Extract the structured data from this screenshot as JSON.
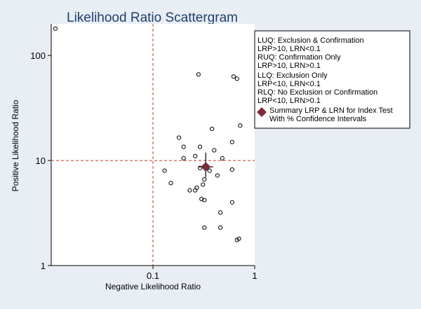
{
  "chart_data": {
    "type": "scatter",
    "title": "Likelihood Ratio Scattergram",
    "xlabel": "Negative Likelihood Ratio",
    "ylabel": "Positive Likelihood Ratio",
    "x_scale": "log",
    "y_scale": "log",
    "xlim": [
      0.01,
      1
    ],
    "ylim": [
      1,
      200
    ],
    "x_ticks": [
      {
        "value": 0.1,
        "label": "0.1"
      },
      {
        "value": 1,
        "label": "1"
      }
    ],
    "y_ticks": [
      {
        "value": 1,
        "label": "1"
      },
      {
        "value": 10,
        "label": "10"
      },
      {
        "value": 100,
        "label": "100"
      }
    ],
    "reference_lines": {
      "x": 0.1,
      "y": 10
    },
    "studies": [
      {
        "x": 0.011,
        "y": 180
      },
      {
        "x": 0.28,
        "y": 66
      },
      {
        "x": 0.62,
        "y": 63
      },
      {
        "x": 0.67,
        "y": 60
      },
      {
        "x": 0.72,
        "y": 21.5
      },
      {
        "x": 0.38,
        "y": 20
      },
      {
        "x": 0.18,
        "y": 16.5
      },
      {
        "x": 0.6,
        "y": 15
      },
      {
        "x": 0.2,
        "y": 13.5
      },
      {
        "x": 0.29,
        "y": 13.5
      },
      {
        "x": 0.4,
        "y": 12.5
      },
      {
        "x": 0.26,
        "y": 11
      },
      {
        "x": 0.2,
        "y": 10.5
      },
      {
        "x": 0.48,
        "y": 10.5
      },
      {
        "x": 0.29,
        "y": 8.5
      },
      {
        "x": 0.34,
        "y": 8.5
      },
      {
        "x": 0.36,
        "y": 8.0
      },
      {
        "x": 0.13,
        "y": 8.0
      },
      {
        "x": 0.6,
        "y": 8.2
      },
      {
        "x": 0.43,
        "y": 7.2
      },
      {
        "x": 0.32,
        "y": 6.6
      },
      {
        "x": 0.15,
        "y": 6.1
      },
      {
        "x": 0.31,
        "y": 5.9
      },
      {
        "x": 0.27,
        "y": 5.5
      },
      {
        "x": 0.23,
        "y": 5.2
      },
      {
        "x": 0.26,
        "y": 5.2
      },
      {
        "x": 0.3,
        "y": 4.3
      },
      {
        "x": 0.32,
        "y": 4.2
      },
      {
        "x": 0.6,
        "y": 4.0
      },
      {
        "x": 0.46,
        "y": 3.2
      },
      {
        "x": 0.32,
        "y": 2.3
      },
      {
        "x": 0.46,
        "y": 2.3
      },
      {
        "x": 0.7,
        "y": 1.8
      },
      {
        "x": 0.67,
        "y": 1.75
      }
    ],
    "summary": {
      "x": 0.33,
      "y": 8.7,
      "x_ci": [
        0.28,
        0.39
      ],
      "y_ci": [
        6.9,
        11.9
      ]
    },
    "legend": [
      "LUQ: Exclusion & Confirmation",
      "LRP>10, LRN<0.1",
      "RUQ: Confirmation Only",
      "LRP>10, LRN>0.1",
      "LLQ: Exclusion Only",
      "LRP<10, LRN<0.1",
      "RLQ: No Exclusion or Confirmation",
      "LRP<10, LRN>0.1",
      "Summary LRP & LRN for Index Test",
      "With  % Confidence Intervals"
    ],
    "legend_position": "top-right",
    "colors": {
      "background": "#e8eef3",
      "plot_background": "#ffffff",
      "reference_line": "#c0392b",
      "summary_marker": "#7b2d3a",
      "title": "#1f3f6d"
    }
  }
}
